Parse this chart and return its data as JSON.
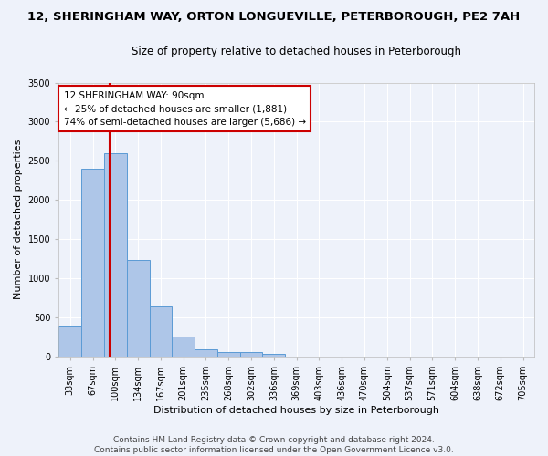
{
  "title": "12, SHERINGHAM WAY, ORTON LONGUEVILLE, PETERBOROUGH, PE2 7AH",
  "subtitle": "Size of property relative to detached houses in Peterborough",
  "xlabel": "Distribution of detached houses by size in Peterborough",
  "ylabel": "Number of detached properties",
  "footer_line1": "Contains HM Land Registry data © Crown copyright and database right 2024.",
  "footer_line2": "Contains public sector information licensed under the Open Government Licence v3.0.",
  "bar_labels": [
    "33sqm",
    "67sqm",
    "100sqm",
    "134sqm",
    "167sqm",
    "201sqm",
    "235sqm",
    "268sqm",
    "302sqm",
    "336sqm",
    "369sqm",
    "403sqm",
    "436sqm",
    "470sqm",
    "504sqm",
    "537sqm",
    "571sqm",
    "604sqm",
    "638sqm",
    "672sqm",
    "705sqm"
  ],
  "bar_values": [
    390,
    2400,
    2600,
    1240,
    640,
    255,
    90,
    60,
    55,
    40,
    0,
    0,
    0,
    0,
    0,
    0,
    0,
    0,
    0,
    0,
    0
  ],
  "bar_color": "#aec6e8",
  "bar_edge_color": "#5b9bd5",
  "ylim": [
    0,
    3500
  ],
  "yticks": [
    0,
    500,
    1000,
    1500,
    2000,
    2500,
    3000,
    3500
  ],
  "property_line_x": 1.73,
  "annotation_text": "12 SHERINGHAM WAY: 90sqm\n← 25% of detached houses are smaller (1,881)\n74% of semi-detached houses are larger (5,686) →",
  "annotation_box_color": "#ffffff",
  "annotation_box_edge_color": "#cc0000",
  "vline_color": "#cc0000",
  "background_color": "#eef2fa",
  "grid_color": "#ffffff",
  "title_fontsize": 9.5,
  "subtitle_fontsize": 8.5,
  "ylabel_fontsize": 8,
  "xlabel_fontsize": 8,
  "tick_fontsize": 7,
  "annot_fontsize": 7.5,
  "footer_fontsize": 6.5
}
